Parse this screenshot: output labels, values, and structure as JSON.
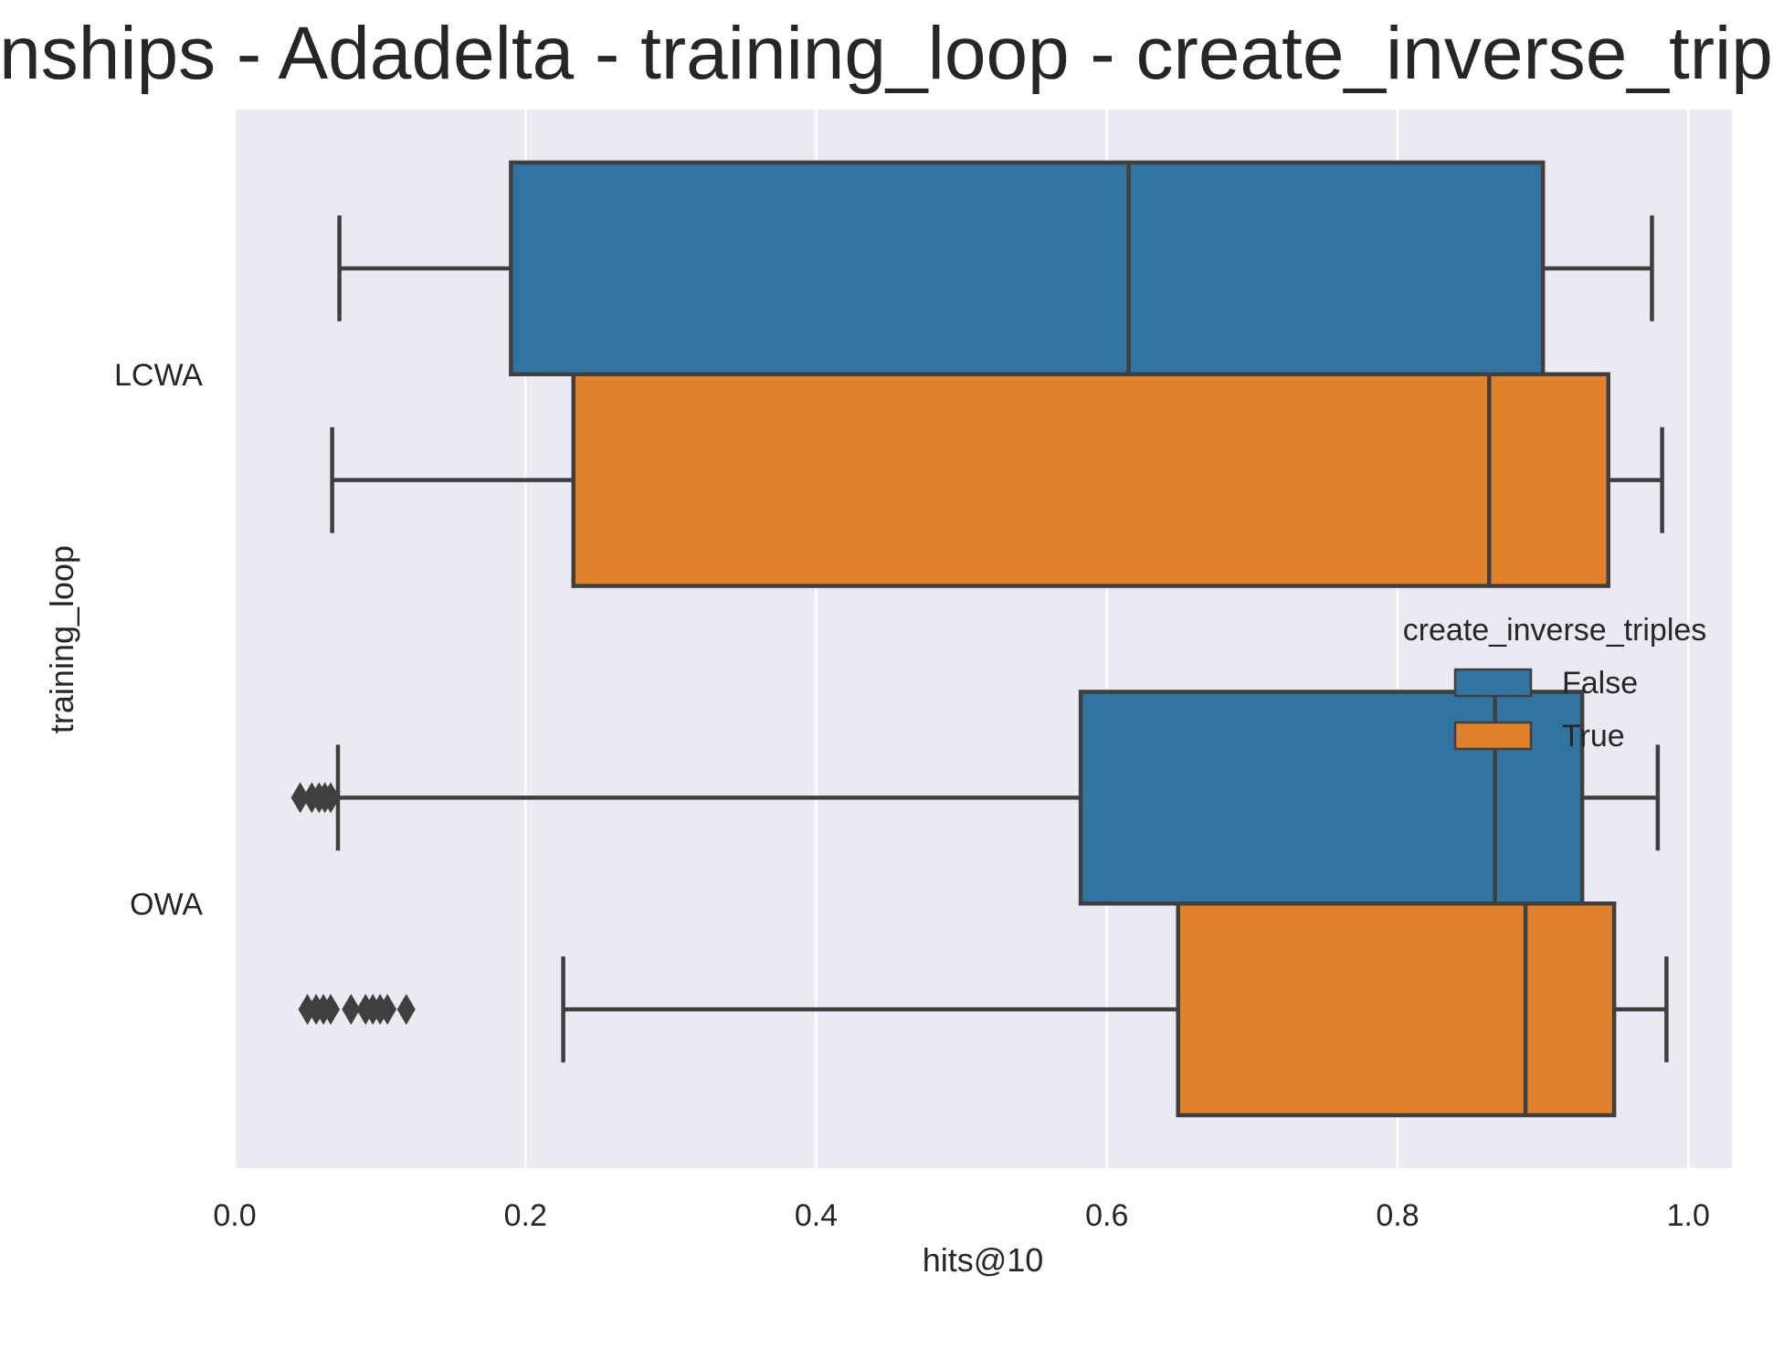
{
  "chart_data": {
    "type": "box",
    "orientation": "horizontal",
    "title": "nships - Adadelta - training_loop - create_inverse_trip",
    "xlabel": "hits@10",
    "ylabel": "training_loop",
    "xlim": [
      0.0,
      1.03
    ],
    "xticks": [
      "0.0",
      "0.2",
      "0.4",
      "0.6",
      "0.8",
      "1.0"
    ],
    "grid": true,
    "categories": [
      "LCWA",
      "OWA"
    ],
    "legend": {
      "title": "create_inverse_triples",
      "placement": "center-right",
      "entries": [
        "False",
        "True"
      ]
    },
    "series": [
      {
        "name": "False",
        "color": "#3274a1",
        "boxes": [
          {
            "category": "LCWA",
            "whisker_low": 0.072,
            "q1": 0.19,
            "median": 0.615,
            "q3": 0.9,
            "whisker_high": 0.975,
            "outliers": []
          },
          {
            "category": "OWA",
            "whisker_low": 0.071,
            "q1": 0.582,
            "median": 0.867,
            "q3": 0.927,
            "whisker_high": 0.979,
            "outliers": [
              0.045,
              0.053,
              0.058,
              0.062,
              0.066
            ]
          }
        ]
      },
      {
        "name": "True",
        "color": "#e1812c",
        "boxes": [
          {
            "category": "LCWA",
            "whisker_low": 0.067,
            "q1": 0.233,
            "median": 0.863,
            "q3": 0.945,
            "whisker_high": 0.982,
            "outliers": []
          },
          {
            "category": "OWA",
            "whisker_low": 0.226,
            "q1": 0.649,
            "median": 0.888,
            "q3": 0.949,
            "whisker_high": 0.985,
            "outliers": [
              0.05,
              0.056,
              0.061,
              0.066,
              0.08,
              0.09,
              0.095,
              0.1,
              0.105,
              0.118
            ]
          }
        ]
      }
    ]
  }
}
